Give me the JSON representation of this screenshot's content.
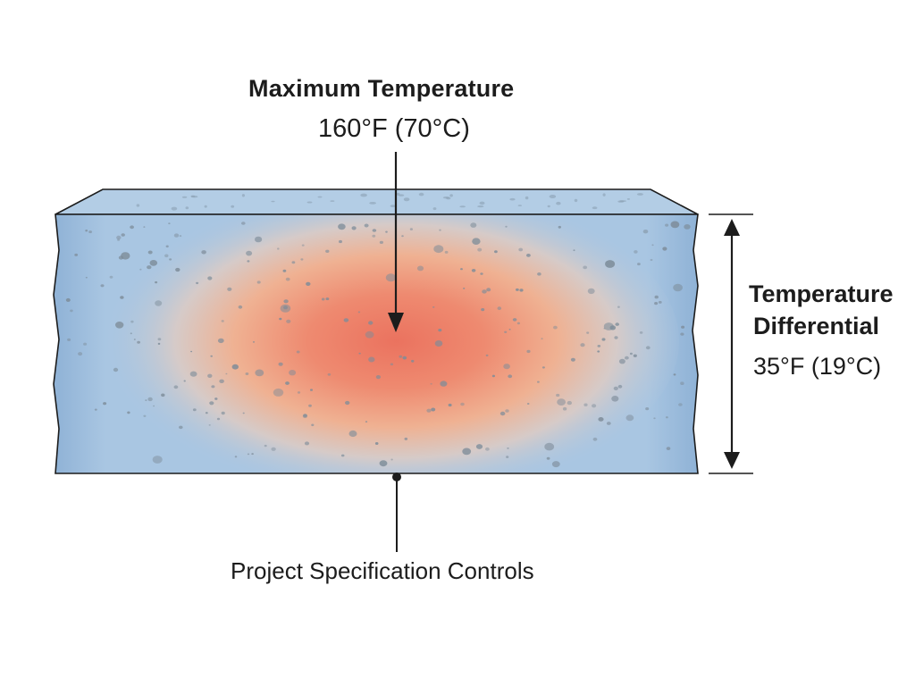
{
  "max_temperature": {
    "title": "Maximum Temperature",
    "value": "160°F (70°C)"
  },
  "temperature_differential": {
    "title_line1": "Temperature",
    "title_line2": "Differential",
    "value": "35°F (19°C)"
  },
  "specification": {
    "label": "Project Specification Controls"
  },
  "colors": {
    "slab_blue": "#a9c6e2",
    "slab_edge_blue": "#8fb2d6",
    "core_red": "#ee6e58",
    "warm_orange": "#f3a886",
    "line_dark": "#1c1c1c",
    "aggregate_gray": "#7d8c99"
  }
}
